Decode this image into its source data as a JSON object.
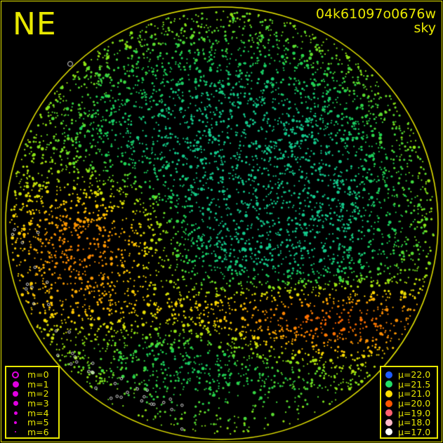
{
  "header": {
    "direction": "NE",
    "image_id": "04k61097o0676w",
    "subtitle": "sky"
  },
  "magnitude_legend": {
    "color": "#e000e0",
    "items": [
      {
        "label": "m=0",
        "style": "ring",
        "size": 10
      },
      {
        "label": "m=1",
        "style": "dot",
        "size": 9
      },
      {
        "label": "m=2",
        "style": "dot",
        "size": 8
      },
      {
        "label": "m=3",
        "style": "dot",
        "size": 7
      },
      {
        "label": "m=4",
        "style": "dot",
        "size": 5
      },
      {
        "label": "m=5",
        "style": "dot",
        "size": 4
      },
      {
        "label": "m=6",
        "style": "dot",
        "size": 2
      }
    ]
  },
  "brightness_legend": {
    "items": [
      {
        "label": "μ=22.0",
        "color": "#1e5bff"
      },
      {
        "label": "μ=21.5",
        "color": "#22dd66"
      },
      {
        "label": "μ=21.0",
        "color": "#ffdd00"
      },
      {
        "label": "μ=20.0",
        "color": "#ff5500"
      },
      {
        "label": "μ=19.0",
        "color": "#ff6070"
      },
      {
        "label": "μ=18.0",
        "color": "#ffb8c8"
      },
      {
        "label": "μ=17.0",
        "color": "#ffffff"
      }
    ]
  },
  "colors": {
    "frame": "#e8e800",
    "background": "#000000"
  }
}
